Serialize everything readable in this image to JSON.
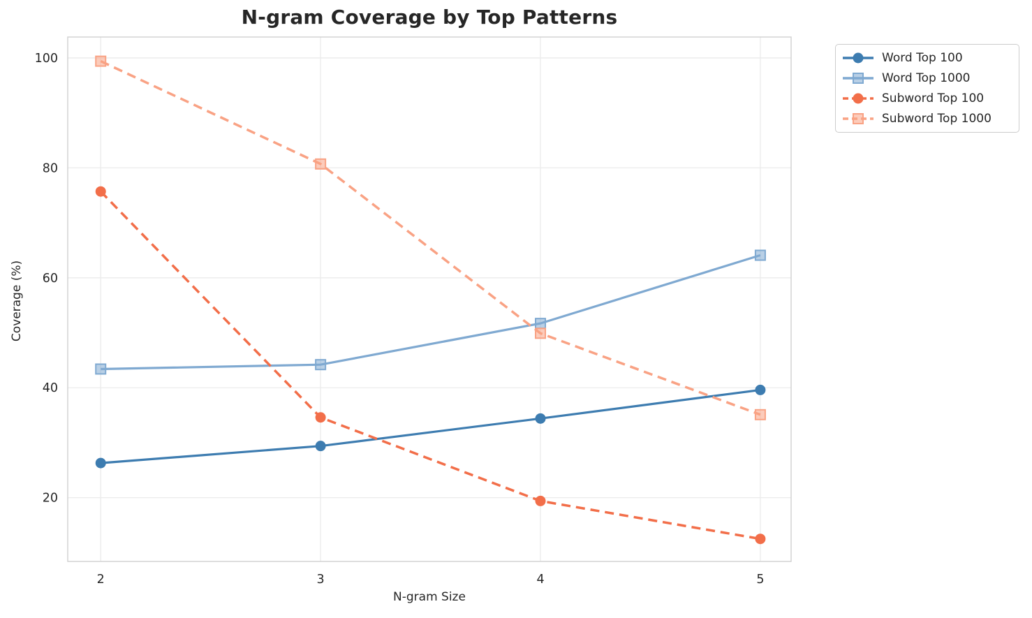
{
  "chart_data": {
    "type": "line",
    "title": "N-gram Coverage by Top Patterns",
    "xlabel": "N-gram Size",
    "ylabel": "Coverage (%)",
    "x": [
      2,
      3,
      4,
      5
    ],
    "xticks": [
      "2",
      "3",
      "4",
      "5"
    ],
    "yticks": [
      "20",
      "40",
      "60",
      "80",
      "100"
    ],
    "ytick_values": [
      20,
      40,
      60,
      80,
      100
    ],
    "xlim": [
      1.85,
      5.14
    ],
    "ylim": [
      8.4,
      103.8
    ],
    "grid": true,
    "legend_position": "outside-upper-right",
    "series": [
      {
        "name": "Word Top 100",
        "values": [
          26.3,
          29.4,
          34.4,
          39.6
        ],
        "color": "#3d7cb0",
        "linestyle": "solid",
        "marker": "circle"
      },
      {
        "name": "Word Top 1000",
        "values": [
          43.4,
          44.2,
          51.7,
          64.1
        ],
        "color": "#7fa9d1",
        "linestyle": "solid",
        "marker": "square"
      },
      {
        "name": "Subword Top 100",
        "values": [
          75.7,
          34.6,
          19.4,
          12.5
        ],
        "color": "#f26e49",
        "linestyle": "dashed",
        "marker": "circle"
      },
      {
        "name": "Subword Top 1000",
        "values": [
          99.4,
          80.7,
          49.9,
          35.1
        ],
        "color": "#f9a284",
        "linestyle": "dashed",
        "marker": "square"
      }
    ],
    "colors": {
      "grid": "#ebebeb",
      "spine": "#cfcfcf",
      "text": "#262626"
    }
  }
}
